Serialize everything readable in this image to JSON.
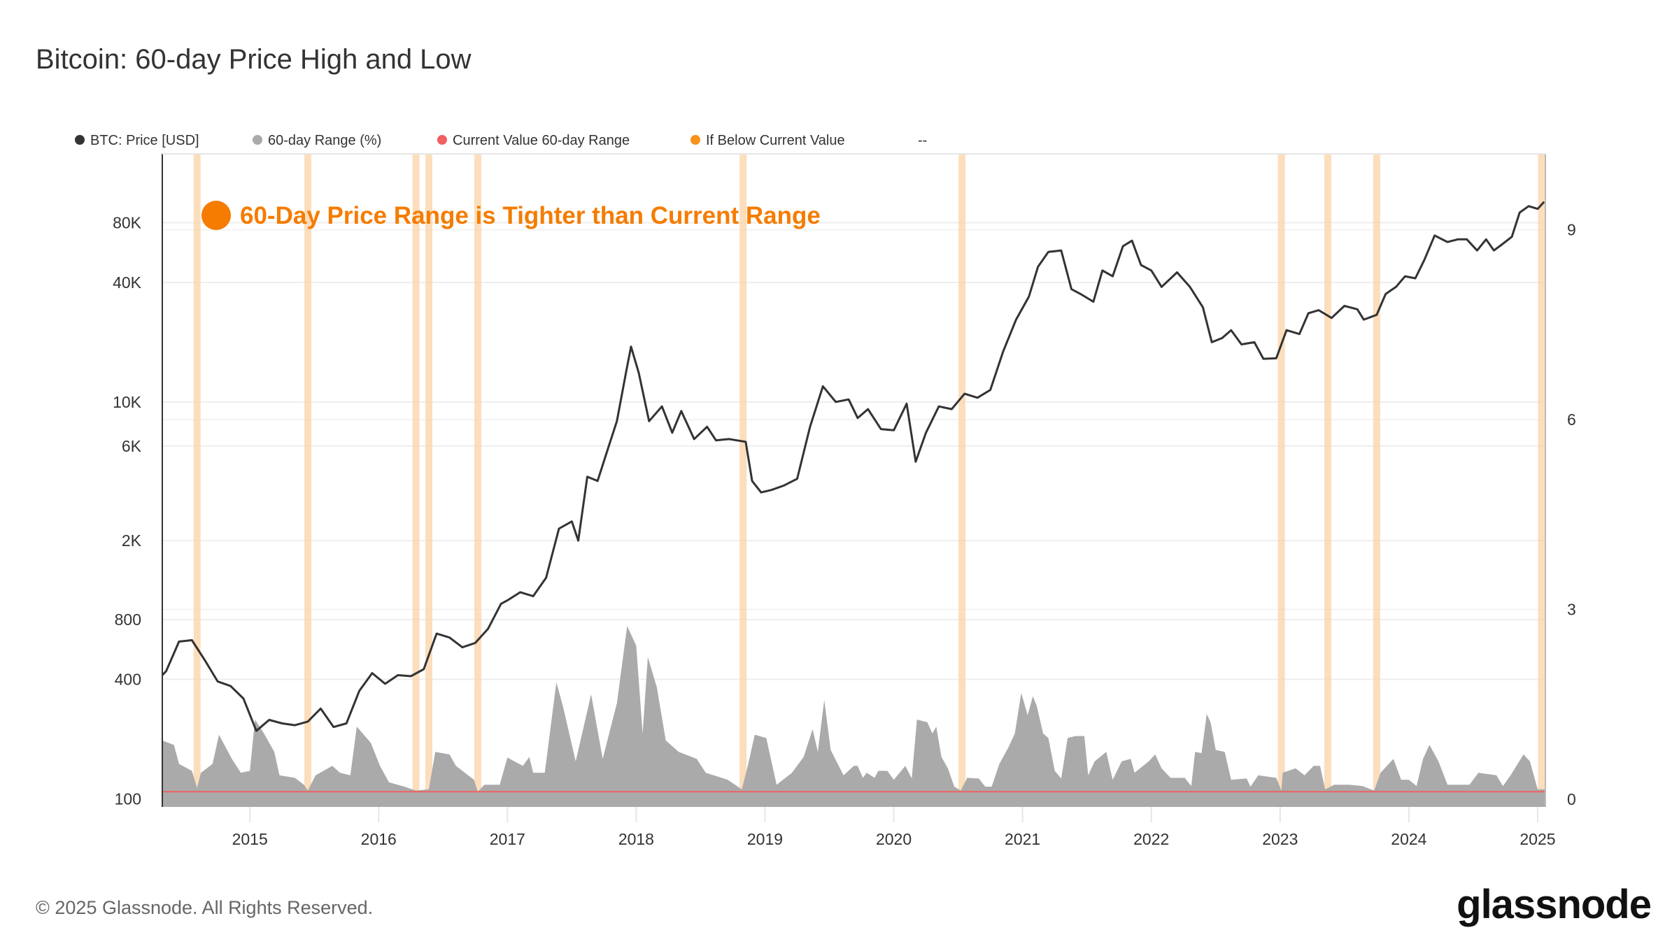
{
  "title": "Bitcoin: 60-day Price High and Low",
  "footer": "© 2025 Glassnode. All Rights Reserved.",
  "logo_text": "glassnode",
  "colors": {
    "price": "#333333",
    "range": "#aaaaaa",
    "current_value": "#f06060",
    "below_current": "#f7931a",
    "annotation": "#f57c00",
    "band": "#fbd3a6"
  },
  "chart_data": {
    "type": "line",
    "title": "Bitcoin: 60-day Price High and Low",
    "annotation": "60-Day Price Range is Tighter than Current Range",
    "legend": [
      {
        "label": "BTC: Price [USD]",
        "color": "#333333"
      },
      {
        "label": "60-day Range (%)",
        "color": "#aaaaaa"
      },
      {
        "label": "Current Value 60-day Range",
        "color": "#f06060"
      },
      {
        "label": "If Below Current Value",
        "color": "#f7931a"
      },
      {
        "label": "--",
        "color": ""
      }
    ],
    "legend_placement": "top-left",
    "x_range": [
      2014.32,
      2025.06
    ],
    "x_ticks": [
      "2015",
      "2016",
      "2017",
      "2018",
      "2019",
      "2020",
      "2021",
      "2022",
      "2023",
      "2024",
      "2025"
    ],
    "y_left": {
      "scale": "log",
      "range": [
        91,
        178000
      ],
      "ticks": [
        {
          "v": 80000,
          "label": "80K"
        },
        {
          "v": 40000,
          "label": "40K"
        },
        {
          "v": 10000,
          "label": "10K"
        },
        {
          "v": 6000,
          "label": "6K"
        },
        {
          "v": 2000,
          "label": "2K"
        },
        {
          "v": 800,
          "label": "800"
        },
        {
          "v": 400,
          "label": "400"
        },
        {
          "v": 100,
          "label": "100"
        }
      ]
    },
    "y_right": {
      "scale": "linear",
      "range": [
        -0.12,
        10.2
      ],
      "ticks": [
        {
          "v": 0,
          "label": "0"
        },
        {
          "v": 3,
          "label": "3"
        },
        {
          "v": 6,
          "label": "6"
        },
        {
          "v": 9,
          "label": "9"
        }
      ]
    },
    "grid": true,
    "current_value_range": 0.12,
    "price": [
      [
        2014.32,
        420
      ],
      [
        2014.35,
        440
      ],
      [
        2014.45,
        620
      ],
      [
        2014.55,
        630
      ],
      [
        2014.65,
        500
      ],
      [
        2014.75,
        390
      ],
      [
        2014.85,
        370
      ],
      [
        2014.95,
        320
      ],
      [
        2015.05,
        220
      ],
      [
        2015.15,
        250
      ],
      [
        2015.25,
        240
      ],
      [
        2015.35,
        235
      ],
      [
        2015.45,
        245
      ],
      [
        2015.55,
        285
      ],
      [
        2015.65,
        230
      ],
      [
        2015.75,
        240
      ],
      [
        2015.85,
        350
      ],
      [
        2015.95,
        430
      ],
      [
        2016.05,
        380
      ],
      [
        2016.15,
        420
      ],
      [
        2016.25,
        415
      ],
      [
        2016.35,
        450
      ],
      [
        2016.45,
        680
      ],
      [
        2016.55,
        650
      ],
      [
        2016.65,
        580
      ],
      [
        2016.75,
        610
      ],
      [
        2016.85,
        720
      ],
      [
        2016.95,
        960
      ],
      [
        2017.0,
        1000
      ],
      [
        2017.1,
        1100
      ],
      [
        2017.2,
        1050
      ],
      [
        2017.3,
        1300
      ],
      [
        2017.4,
        2300
      ],
      [
        2017.5,
        2500
      ],
      [
        2017.55,
        2000
      ],
      [
        2017.62,
        4200
      ],
      [
        2017.7,
        4000
      ],
      [
        2017.78,
        5800
      ],
      [
        2017.85,
        8000
      ],
      [
        2017.92,
        14000
      ],
      [
        2017.96,
        19000
      ],
      [
        2018.02,
        14000
      ],
      [
        2018.1,
        8000
      ],
      [
        2018.2,
        9500
      ],
      [
        2018.28,
        7000
      ],
      [
        2018.35,
        9000
      ],
      [
        2018.45,
        6500
      ],
      [
        2018.55,
        7500
      ],
      [
        2018.62,
        6400
      ],
      [
        2018.72,
        6500
      ],
      [
        2018.85,
        6300
      ],
      [
        2018.9,
        4000
      ],
      [
        2018.97,
        3500
      ],
      [
        2019.05,
        3600
      ],
      [
        2019.15,
        3800
      ],
      [
        2019.25,
        4100
      ],
      [
        2019.35,
        7500
      ],
      [
        2019.45,
        12000
      ],
      [
        2019.55,
        10000
      ],
      [
        2019.65,
        10300
      ],
      [
        2019.72,
        8300
      ],
      [
        2019.8,
        9200
      ],
      [
        2019.9,
        7300
      ],
      [
        2020.0,
        7200
      ],
      [
        2020.1,
        9800
      ],
      [
        2020.17,
        5000
      ],
      [
        2020.25,
        7000
      ],
      [
        2020.35,
        9500
      ],
      [
        2020.45,
        9200
      ],
      [
        2020.55,
        11000
      ],
      [
        2020.65,
        10500
      ],
      [
        2020.75,
        11500
      ],
      [
        2020.85,
        18000
      ],
      [
        2020.95,
        26000
      ],
      [
        2021.05,
        34000
      ],
      [
        2021.12,
        48000
      ],
      [
        2021.2,
        57000
      ],
      [
        2021.3,
        58000
      ],
      [
        2021.38,
        37000
      ],
      [
        2021.45,
        35000
      ],
      [
        2021.55,
        32000
      ],
      [
        2021.62,
        46000
      ],
      [
        2021.7,
        43000
      ],
      [
        2021.78,
        61000
      ],
      [
        2021.85,
        65000
      ],
      [
        2021.92,
        49000
      ],
      [
        2022.0,
        46000
      ],
      [
        2022.08,
        38000
      ],
      [
        2022.2,
        45000
      ],
      [
        2022.3,
        38000
      ],
      [
        2022.4,
        30000
      ],
      [
        2022.47,
        20000
      ],
      [
        2022.55,
        21000
      ],
      [
        2022.62,
        23000
      ],
      [
        2022.7,
        19500
      ],
      [
        2022.8,
        20000
      ],
      [
        2022.87,
        16500
      ],
      [
        2022.97,
        16600
      ],
      [
        2023.05,
        23000
      ],
      [
        2023.15,
        22000
      ],
      [
        2023.22,
        28000
      ],
      [
        2023.3,
        29000
      ],
      [
        2023.4,
        26500
      ],
      [
        2023.5,
        30500
      ],
      [
        2023.6,
        29300
      ],
      [
        2023.65,
        26000
      ],
      [
        2023.75,
        27500
      ],
      [
        2023.82,
        35000
      ],
      [
        2023.9,
        38000
      ],
      [
        2023.97,
        43000
      ],
      [
        2024.05,
        42000
      ],
      [
        2024.12,
        52000
      ],
      [
        2024.2,
        69000
      ],
      [
        2024.3,
        64000
      ],
      [
        2024.38,
        66000
      ],
      [
        2024.45,
        66000
      ],
      [
        2024.53,
        58000
      ],
      [
        2024.6,
        66000
      ],
      [
        2024.66,
        58000
      ],
      [
        2024.72,
        62000
      ],
      [
        2024.8,
        68000
      ],
      [
        2024.86,
        90000
      ],
      [
        2024.93,
        97000
      ],
      [
        2025.0,
        94000
      ],
      [
        2025.05,
        102000
      ]
    ],
    "range_60d": [
      [
        2014.32,
        0.93
      ],
      [
        2014.41,
        0.86
      ],
      [
        2014.45,
        0.56
      ],
      [
        2014.55,
        0.45
      ],
      [
        2014.59,
        0.18
      ],
      [
        2014.62,
        0.42
      ],
      [
        2014.71,
        0.56
      ],
      [
        2014.76,
        1.02
      ],
      [
        2014.86,
        0.64
      ],
      [
        2014.93,
        0.42
      ],
      [
        2015.0,
        0.45
      ],
      [
        2015.04,
        1.26
      ],
      [
        2015.11,
        1.04
      ],
      [
        2015.19,
        0.75
      ],
      [
        2015.23,
        0.38
      ],
      [
        2015.35,
        0.34
      ],
      [
        2015.42,
        0.23
      ],
      [
        2015.45,
        0.14
      ],
      [
        2015.51,
        0.38
      ],
      [
        2015.64,
        0.53
      ],
      [
        2015.7,
        0.42
      ],
      [
        2015.78,
        0.38
      ],
      [
        2015.83,
        1.15
      ],
      [
        2015.94,
        0.89
      ],
      [
        2016.01,
        0.53
      ],
      [
        2016.08,
        0.27
      ],
      [
        2016.2,
        0.2
      ],
      [
        2016.29,
        0.14
      ],
      [
        2016.39,
        0.16
      ],
      [
        2016.44,
        0.75
      ],
      [
        2016.55,
        0.71
      ],
      [
        2016.6,
        0.53
      ],
      [
        2016.74,
        0.31
      ],
      [
        2016.77,
        0.12
      ],
      [
        2016.82,
        0.23
      ],
      [
        2016.94,
        0.23
      ],
      [
        2017.0,
        0.66
      ],
      [
        2017.12,
        0.53
      ],
      [
        2017.17,
        0.67
      ],
      [
        2017.2,
        0.42
      ],
      [
        2017.29,
        0.42
      ],
      [
        2017.38,
        1.85
      ],
      [
        2017.43,
        1.48
      ],
      [
        2017.53,
        0.6
      ],
      [
        2017.65,
        1.66
      ],
      [
        2017.74,
        0.64
      ],
      [
        2017.85,
        1.52
      ],
      [
        2017.93,
        2.74
      ],
      [
        2018.0,
        2.43
      ],
      [
        2018.05,
        1.04
      ],
      [
        2018.09,
        2.25
      ],
      [
        2018.16,
        1.77
      ],
      [
        2018.23,
        0.93
      ],
      [
        2018.33,
        0.75
      ],
      [
        2018.47,
        0.64
      ],
      [
        2018.54,
        0.42
      ],
      [
        2018.71,
        0.31
      ],
      [
        2018.82,
        0.16
      ],
      [
        2018.87,
        0.56
      ],
      [
        2018.92,
        1.02
      ],
      [
        2019.01,
        0.97
      ],
      [
        2019.09,
        0.23
      ],
      [
        2019.21,
        0.42
      ],
      [
        2019.3,
        0.67
      ],
      [
        2019.37,
        1.11
      ],
      [
        2019.41,
        0.75
      ],
      [
        2019.46,
        1.57
      ],
      [
        2019.51,
        0.78
      ],
      [
        2019.61,
        0.38
      ],
      [
        2019.69,
        0.53
      ],
      [
        2019.72,
        0.53
      ],
      [
        2019.76,
        0.34
      ],
      [
        2019.79,
        0.42
      ],
      [
        2019.85,
        0.34
      ],
      [
        2019.88,
        0.45
      ],
      [
        2019.95,
        0.45
      ],
      [
        2020.0,
        0.31
      ],
      [
        2020.09,
        0.53
      ],
      [
        2020.14,
        0.33
      ],
      [
        2020.18,
        1.26
      ],
      [
        2020.26,
        1.22
      ],
      [
        2020.3,
        1.04
      ],
      [
        2020.33,
        1.15
      ],
      [
        2020.37,
        0.67
      ],
      [
        2020.42,
        0.49
      ],
      [
        2020.47,
        0.2
      ],
      [
        2020.52,
        0.14
      ],
      [
        2020.57,
        0.34
      ],
      [
        2020.66,
        0.33
      ],
      [
        2020.71,
        0.2
      ],
      [
        2020.76,
        0.2
      ],
      [
        2020.82,
        0.56
      ],
      [
        2020.89,
        0.82
      ],
      [
        2020.94,
        1.04
      ],
      [
        2020.99,
        1.68
      ],
      [
        2021.04,
        1.33
      ],
      [
        2021.08,
        1.63
      ],
      [
        2021.11,
        1.48
      ],
      [
        2021.16,
        1.04
      ],
      [
        2021.2,
        0.97
      ],
      [
        2021.25,
        0.45
      ],
      [
        2021.3,
        0.33
      ],
      [
        2021.35,
        0.97
      ],
      [
        2021.41,
        1.0
      ],
      [
        2021.48,
        1.0
      ],
      [
        2021.51,
        0.38
      ],
      [
        2021.56,
        0.6
      ],
      [
        2021.65,
        0.75
      ],
      [
        2021.7,
        0.31
      ],
      [
        2021.77,
        0.6
      ],
      [
        2021.84,
        0.64
      ],
      [
        2021.87,
        0.42
      ],
      [
        2021.98,
        0.6
      ],
      [
        2022.03,
        0.71
      ],
      [
        2022.08,
        0.49
      ],
      [
        2022.15,
        0.34
      ],
      [
        2022.26,
        0.34
      ],
      [
        2022.31,
        0.21
      ],
      [
        2022.34,
        0.75
      ],
      [
        2022.39,
        0.73
      ],
      [
        2022.43,
        1.35
      ],
      [
        2022.46,
        1.22
      ],
      [
        2022.5,
        0.78
      ],
      [
        2022.57,
        0.75
      ],
      [
        2022.62,
        0.31
      ],
      [
        2022.74,
        0.33
      ],
      [
        2022.77,
        0.2
      ],
      [
        2022.83,
        0.38
      ],
      [
        2022.97,
        0.34
      ],
      [
        2023.01,
        0.14
      ],
      [
        2023.02,
        0.42
      ],
      [
        2023.12,
        0.49
      ],
      [
        2023.19,
        0.38
      ],
      [
        2023.26,
        0.53
      ],
      [
        2023.31,
        0.53
      ],
      [
        2023.35,
        0.16
      ],
      [
        2023.42,
        0.23
      ],
      [
        2023.54,
        0.23
      ],
      [
        2023.64,
        0.21
      ],
      [
        2023.73,
        0.14
      ],
      [
        2023.78,
        0.42
      ],
      [
        2023.88,
        0.64
      ],
      [
        2023.94,
        0.31
      ],
      [
        2024.0,
        0.31
      ],
      [
        2024.06,
        0.21
      ],
      [
        2024.11,
        0.64
      ],
      [
        2024.16,
        0.86
      ],
      [
        2024.23,
        0.6
      ],
      [
        2024.3,
        0.23
      ],
      [
        2024.47,
        0.23
      ],
      [
        2024.54,
        0.42
      ],
      [
        2024.68,
        0.38
      ],
      [
        2024.73,
        0.21
      ],
      [
        2024.79,
        0.38
      ],
      [
        2024.89,
        0.71
      ],
      [
        2024.94,
        0.6
      ],
      [
        2025.0,
        0.16
      ],
      [
        2025.06,
        0.16
      ]
    ],
    "below_current_periods": [
      2014.59,
      2015.45,
      2016.29,
      2016.39,
      2016.77,
      2018.83,
      2020.53,
      2023.01,
      2023.37,
      2023.75,
      2025.03
    ]
  }
}
